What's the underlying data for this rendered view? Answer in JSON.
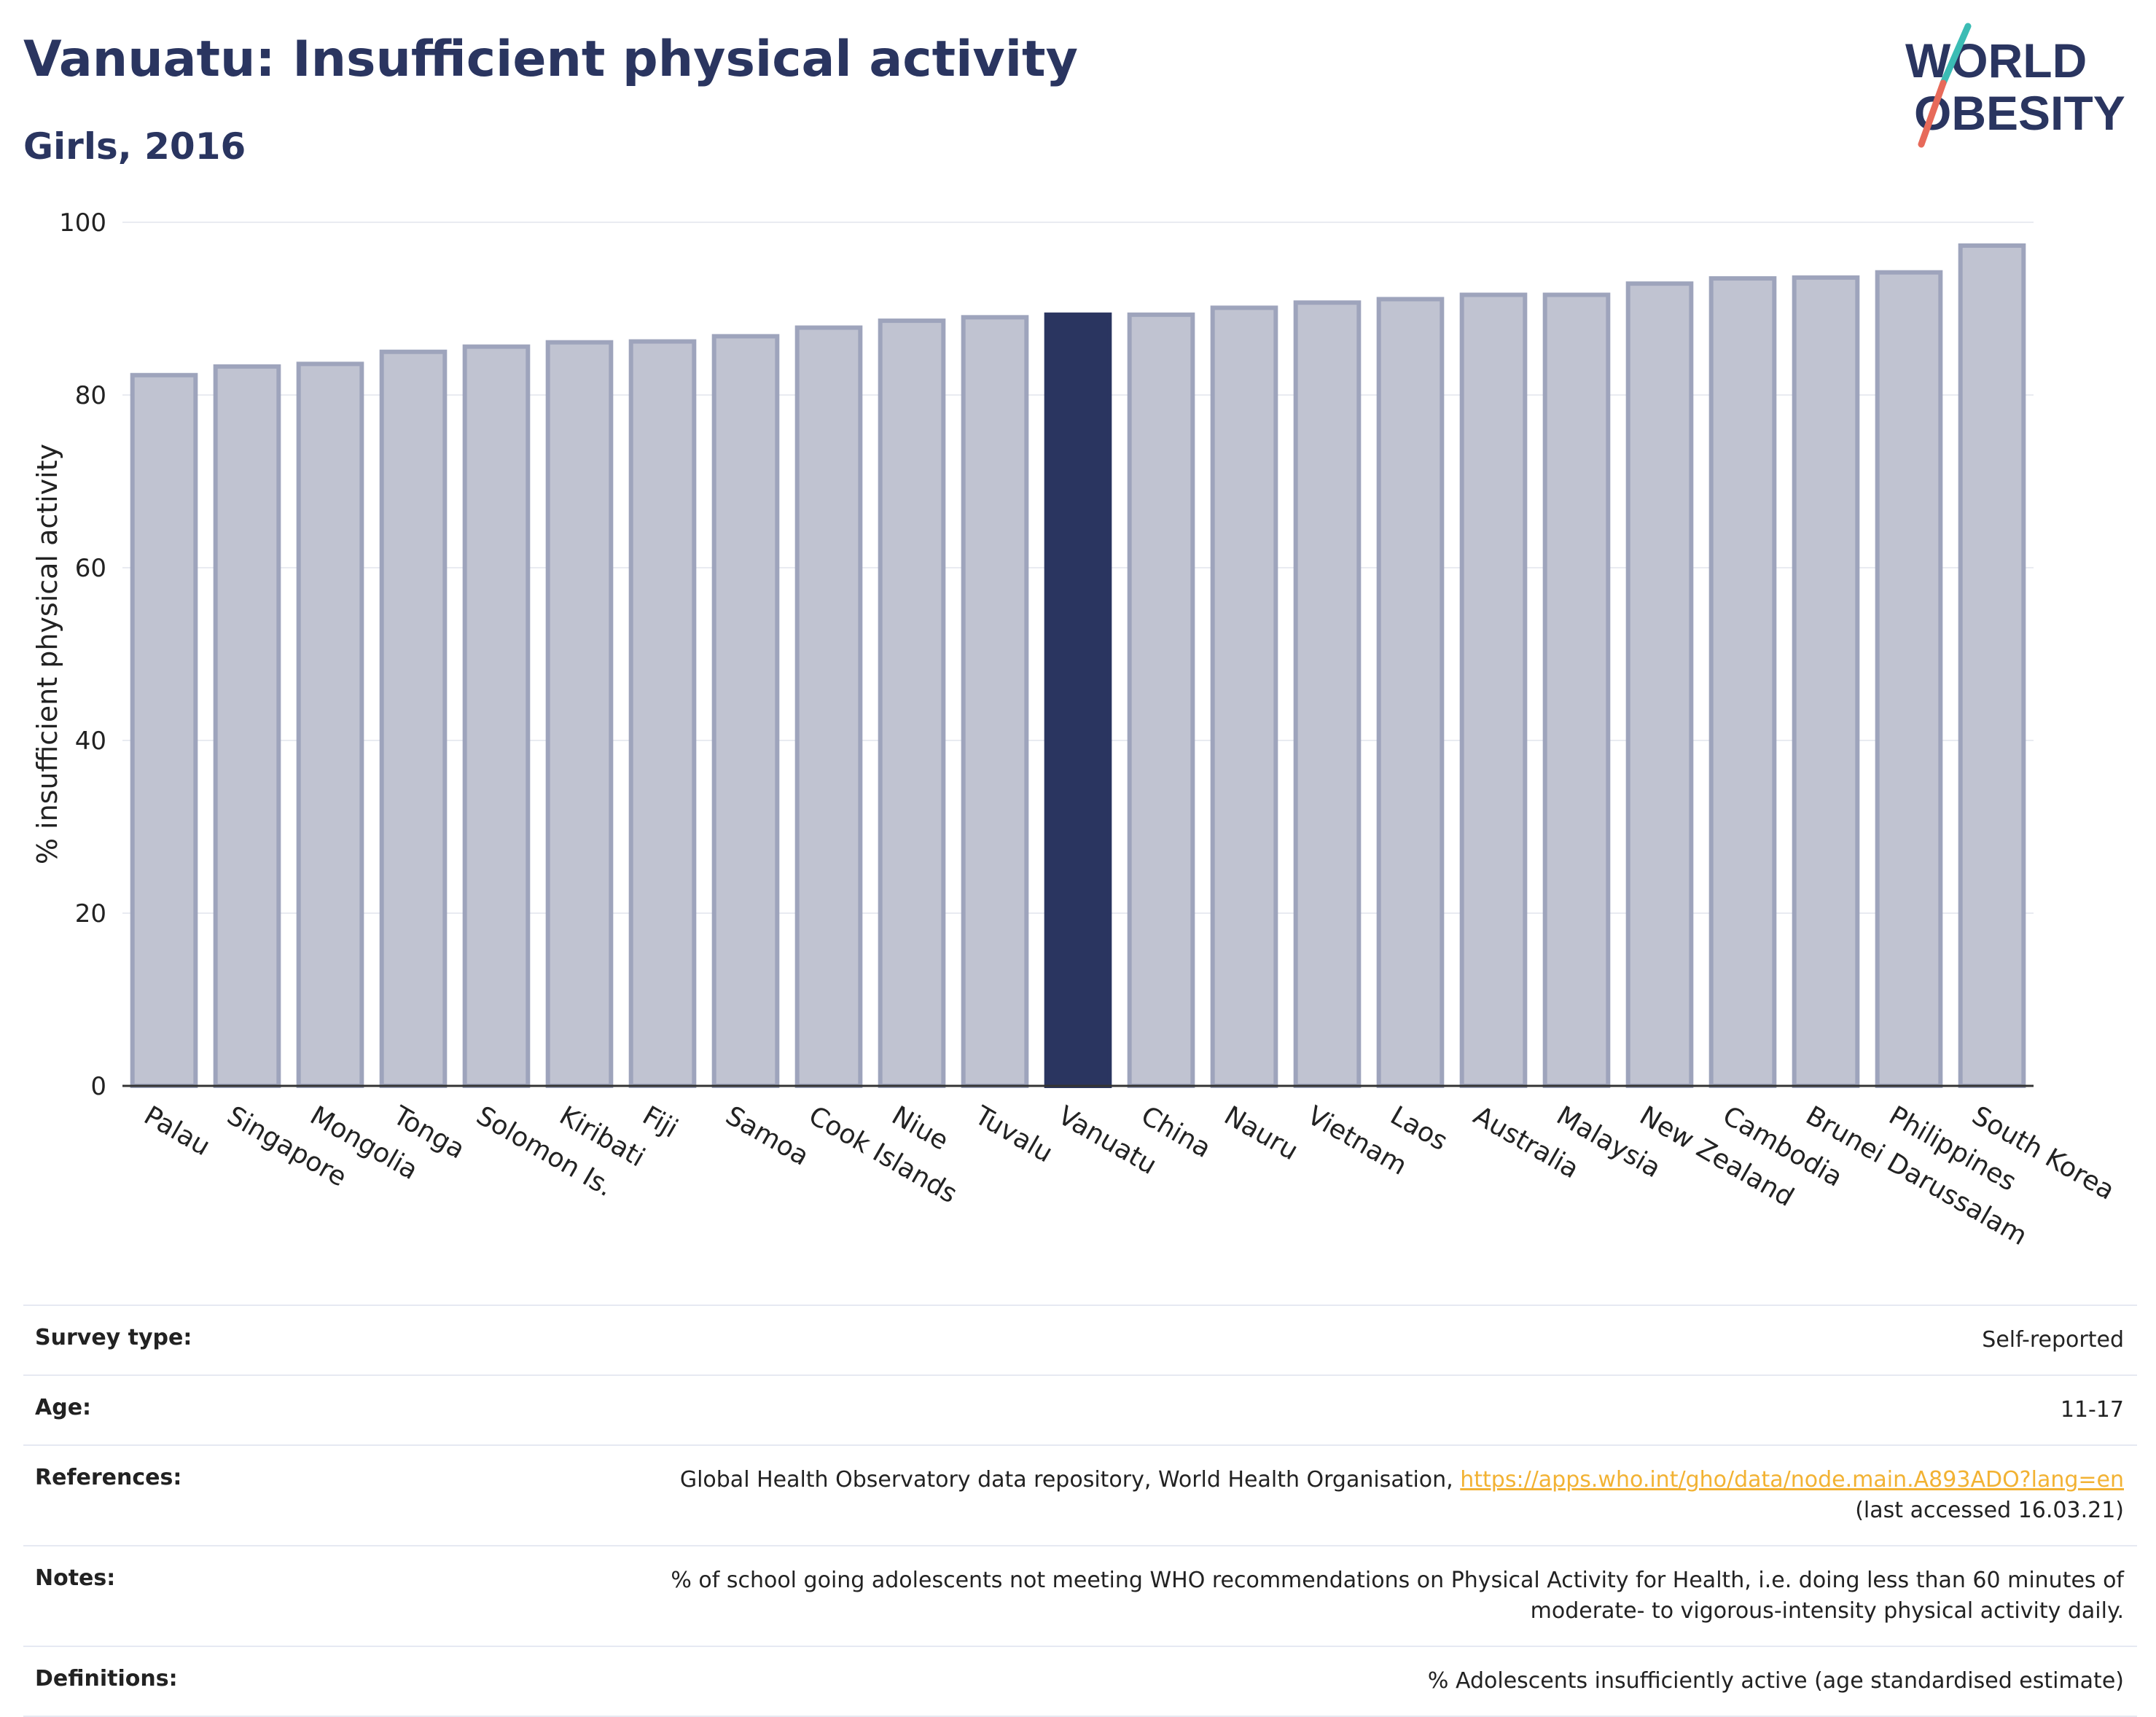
{
  "header": {
    "title": "Vanuatu: Insufficient physical activity",
    "subtitle": "Girls, 2016"
  },
  "logo": {
    "line1": "WORLD",
    "line2": "OBESITY"
  },
  "colors": {
    "highlight": "#2a3560",
    "bar": "#c0c3d1",
    "bar_outline": "#9ea4bc",
    "axis": "#333333",
    "grid": "#e9ebf1",
    "logo_text": "#2a3560",
    "logo_teal": "#3bbcb4",
    "logo_red": "#e76a5a",
    "link": "#f2b233"
  },
  "chart_data": {
    "type": "bar",
    "ylabel": "% insufficient physical activity",
    "ylim": [
      0,
      100
    ],
    "yticks": [
      0,
      20,
      40,
      60,
      80,
      100
    ],
    "highlight": "Vanuatu",
    "categories": [
      "Palau",
      "Singapore",
      "Mongolia",
      "Tonga",
      "Solomon Is.",
      "Kiribati",
      "Fiji",
      "Samoa",
      "Cook Islands",
      "Niue",
      "Tuvalu",
      "Vanuatu",
      "China",
      "Nauru",
      "Vietnam",
      "Laos",
      "Australia",
      "Malaysia",
      "New Zealand",
      "Cambodia",
      "Brunei Darussalam",
      "Philippines",
      "South Korea"
    ],
    "values": [
      82.3,
      83.3,
      83.6,
      85.0,
      85.6,
      86.1,
      86.2,
      86.8,
      87.8,
      88.6,
      89.0,
      89.3,
      89.3,
      90.1,
      90.7,
      91.1,
      91.6,
      91.6,
      92.9,
      93.5,
      93.6,
      94.2,
      97.3
    ]
  },
  "info": {
    "survey_type": {
      "label": "Survey type:",
      "value": "Self-reported"
    },
    "age": {
      "label": "Age:",
      "value": "11-17"
    },
    "references": {
      "label": "References:",
      "text": "Global Health Observatory data repository, World Health Organisation,",
      "link": "https://apps.who.int/gho/data/node.main.A893ADO?lang=en",
      "accessed": "(last accessed 16.03.21)"
    },
    "notes": {
      "label": "Notes:",
      "line1": "% of school going adolescents not meeting WHO recommendations on Physical Activity for Health, i.e. doing less than 60 minutes of",
      "line2": "moderate- to vigorous-intensity physical activity daily."
    },
    "definitions": {
      "label": "Definitions:",
      "value": "% Adolescents insufficiently active (age standardised estimate)"
    }
  }
}
